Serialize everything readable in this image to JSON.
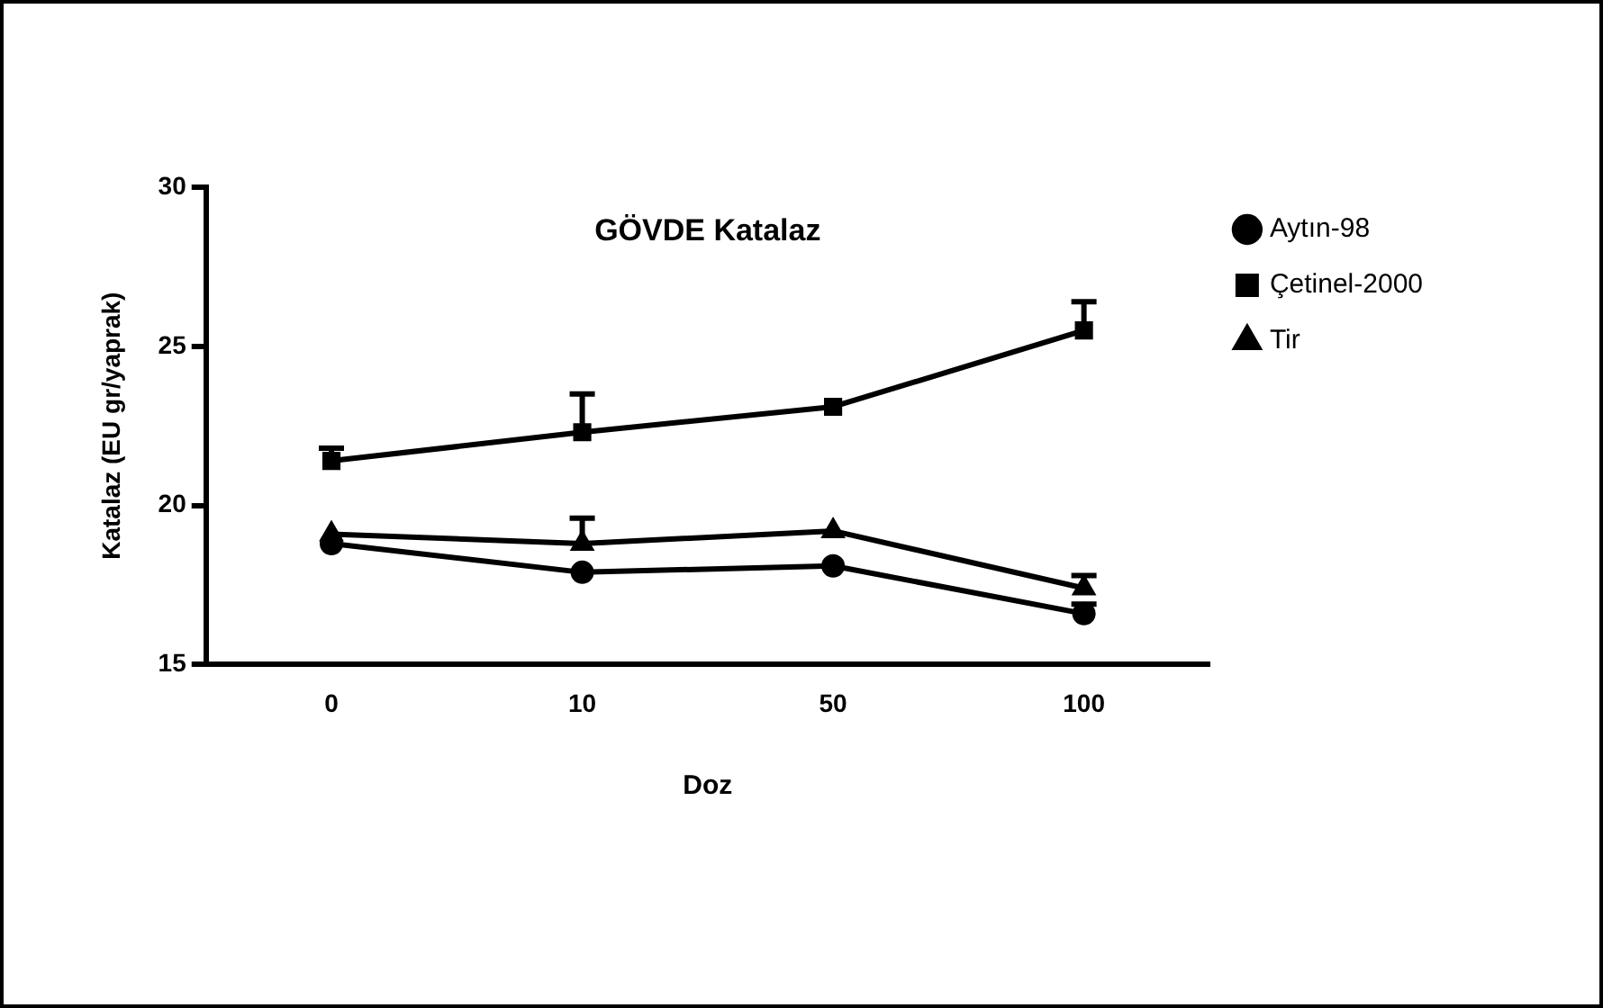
{
  "chart_data": {
    "type": "line",
    "title": "GÖVDE Katalaz",
    "xlabel": "Doz",
    "ylabel": "Katalaz (EU gr/yaprak)",
    "categories": [
      "0",
      "10",
      "50",
      "100"
    ],
    "series": [
      {
        "name": "Aytın-98",
        "color": "#000000",
        "marker": "circle",
        "values": [
          18.8,
          17.9,
          18.1,
          16.6
        ],
        "errors": [
          null,
          null,
          null,
          [
            16.6,
            16.9
          ]
        ]
      },
      {
        "name": "Çetinel-2000",
        "color": "#000000",
        "marker": "square",
        "values": [
          21.4,
          22.3,
          23.1,
          25.5
        ],
        "errors": [
          [
            21.4,
            21.8
          ],
          [
            22.3,
            23.5
          ],
          null,
          [
            25.5,
            26.4
          ]
        ]
      },
      {
        "name": "Tir",
        "color": "#000000",
        "marker": "triangle",
        "values": [
          19.1,
          18.8,
          19.2,
          17.4
        ],
        "errors": [
          null,
          [
            18.8,
            19.6
          ],
          null,
          [
            17.4,
            17.8
          ]
        ]
      }
    ],
    "ylim": [
      15,
      30
    ],
    "yticks": [
      15,
      20,
      25,
      30
    ],
    "grid": false,
    "legend": "top right",
    "line_style": "solid"
  }
}
